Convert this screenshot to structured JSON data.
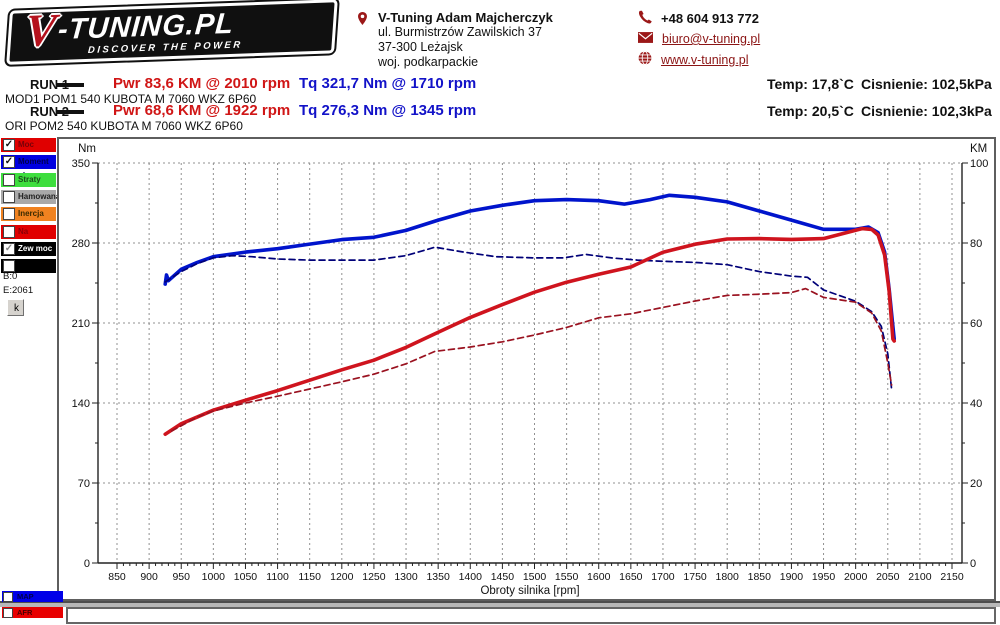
{
  "logo": {
    "v": "V",
    "rest": "-TUNING.PL",
    "tagline": "DISCOVER THE POWER"
  },
  "contact": {
    "name": "V-Tuning Adam Majcherczyk",
    "address_line1": "ul. Burmistrzów Zawilskich 37",
    "address_line2": "37-300 Leżajsk",
    "address_line3": "woj. podkarpackie",
    "phone": "+48 604 913 772",
    "email": "biuro@v-tuning.pl",
    "website": "www.v-tuning.pl"
  },
  "runs": [
    {
      "label": "RUN 1",
      "power": "Pwr  83,6 KM @ 2010 rpm",
      "torque": "Tq 321,7 Nm @ 1710 rpm",
      "temp": "Temp: 17,8`C",
      "pressure": "Cisnienie: 102,5kPa",
      "description": "MOD1 POM1 540 KUBOTA M 7060 WKZ 6P60"
    },
    {
      "label": "RUN 2",
      "power": "Pwr  68,6 KM @ 1922 rpm",
      "torque": "Tq 276,3 Nm @ 1345 rpm",
      "temp": "Temp: 20,5`C",
      "pressure": "Cisnienie: 102,3kPa",
      "description": "ORI POM2 540 KUBOTA M 7060 WKZ 6P60"
    }
  ],
  "sidebar": {
    "channels": [
      {
        "label": "Moc",
        "color": "#e00000",
        "text_color": "#7a0008",
        "checked": true,
        "check_color": "#111111"
      },
      {
        "label": "Moment obr",
        "color": "#0000e0",
        "text_color": "#00004a",
        "checked": true,
        "check_color": "#111111"
      },
      {
        "label": "Straty",
        "color": "#3ede3e",
        "text_color": "#1c4a1c",
        "checked": false
      },
      {
        "label": "Hamowana",
        "color": "#a9a9a9",
        "text_color": "#222222",
        "checked": false
      },
      {
        "label": "Inercja",
        "color": "#f08220",
        "text_color": "#3a2a00",
        "checked": false
      },
      {
        "label": "Na Kołach",
        "color": "#e00000",
        "text_color": "#8a0008",
        "checked": false
      },
      {
        "label": "Zew moc str",
        "color": "#000000",
        "text_color": "#ffffff",
        "checked": true,
        "check_color": "#888888"
      },
      {
        "label": "",
        "color": "#000000",
        "text_color": "#ffffff",
        "checked": false
      }
    ],
    "b_counter": "B:0",
    "e_counter": "E:2061",
    "k_button": "k"
  },
  "bottom_channels": [
    {
      "label": "MAP",
      "color": "#0000e8",
      "text_color": "#00004a"
    },
    {
      "label": "AFR",
      "color": "#e80000",
      "text_color": "#4a0000"
    }
  ],
  "colors": {
    "brand_red": "#b5121d",
    "run_power_text": "#d01616",
    "run_torque_text": "#1212c8",
    "link": "#8b1414",
    "contact_icon": "#9b1818",
    "grid": "#909090",
    "axis": "#222222"
  },
  "chart_data": {
    "type": "line",
    "x_axis": {
      "label": "Obroty silnika [rpm]",
      "min": 850,
      "max": 2150,
      "tick_step": 50,
      "minor_step": 10
    },
    "y_left": {
      "label": "Nm",
      "min": 0,
      "max": 350,
      "tick_step": 70,
      "minor_step": 35
    },
    "y_right": {
      "label": "KM",
      "min": 0,
      "max": 100,
      "tick_step": 20,
      "minor_step": 10
    },
    "grid": true,
    "series": [
      {
        "id": "run1-torque",
        "name": "RUN 1 Moment obr (Nm)",
        "axis": "left",
        "style": "solid",
        "color": "#0014cc",
        "points": [
          [
            925,
            244
          ],
          [
            927,
            252
          ],
          [
            930,
            247
          ],
          [
            950,
            257
          ],
          [
            975,
            263
          ],
          [
            1000,
            268
          ],
          [
            1050,
            272
          ],
          [
            1100,
            275
          ],
          [
            1150,
            279
          ],
          [
            1200,
            283
          ],
          [
            1250,
            285
          ],
          [
            1300,
            291
          ],
          [
            1350,
            300
          ],
          [
            1400,
            308
          ],
          [
            1450,
            313
          ],
          [
            1500,
            317
          ],
          [
            1550,
            318
          ],
          [
            1600,
            317
          ],
          [
            1640,
            314
          ],
          [
            1680,
            318
          ],
          [
            1710,
            321.7
          ],
          [
            1750,
            320
          ],
          [
            1800,
            316
          ],
          [
            1850,
            308
          ],
          [
            1900,
            300
          ],
          [
            1950,
            292
          ],
          [
            2000,
            292
          ],
          [
            2020,
            294
          ],
          [
            2035,
            289
          ],
          [
            2045,
            272
          ],
          [
            2052,
            240
          ],
          [
            2057,
            212
          ],
          [
            2060,
            196
          ]
        ]
      },
      {
        "id": "run2-torque",
        "name": "RUN 2 Moment obr (Nm)",
        "axis": "left",
        "style": "dashed",
        "color": "#000078",
        "points": [
          [
            925,
            246
          ],
          [
            950,
            255
          ],
          [
            975,
            262
          ],
          [
            1000,
            267
          ],
          [
            1030,
            269
          ],
          [
            1060,
            268
          ],
          [
            1100,
            266
          ],
          [
            1150,
            265
          ],
          [
            1200,
            265
          ],
          [
            1250,
            265
          ],
          [
            1300,
            269
          ],
          [
            1345,
            276.3
          ],
          [
            1390,
            272
          ],
          [
            1440,
            268
          ],
          [
            1500,
            267
          ],
          [
            1545,
            267
          ],
          [
            1580,
            270
          ],
          [
            1620,
            267
          ],
          [
            1660,
            265
          ],
          [
            1700,
            264
          ],
          [
            1750,
            263
          ],
          [
            1800,
            261
          ],
          [
            1850,
            255
          ],
          [
            1900,
            251
          ],
          [
            1925,
            250
          ],
          [
            1950,
            239
          ],
          [
            2000,
            229
          ],
          [
            2025,
            220
          ],
          [
            2040,
            207
          ],
          [
            2050,
            183
          ],
          [
            2056,
            152
          ]
        ]
      },
      {
        "id": "run1-power",
        "name": "RUN 1 Moc (KM)",
        "axis": "right",
        "style": "solid",
        "color": "#cf141e",
        "points": [
          [
            925,
            32.2
          ],
          [
            950,
            34.8
          ],
          [
            1000,
            38.2
          ],
          [
            1050,
            40.7
          ],
          [
            1100,
            43.1
          ],
          [
            1150,
            45.7
          ],
          [
            1200,
            48.3
          ],
          [
            1250,
            50.7
          ],
          [
            1300,
            53.9
          ],
          [
            1350,
            57.7
          ],
          [
            1400,
            61.4
          ],
          [
            1450,
            64.6
          ],
          [
            1500,
            67.7
          ],
          [
            1550,
            70.2
          ],
          [
            1600,
            72.2
          ],
          [
            1650,
            74
          ],
          [
            1700,
            77.7
          ],
          [
            1750,
            79.7
          ],
          [
            1800,
            81
          ],
          [
            1850,
            81.1
          ],
          [
            1900,
            80.9
          ],
          [
            1950,
            81.1
          ],
          [
            2000,
            83.2
          ],
          [
            2010,
            83.6
          ],
          [
            2025,
            83.4
          ],
          [
            2035,
            82
          ],
          [
            2045,
            77
          ],
          [
            2052,
            68
          ],
          [
            2058,
            56
          ],
          [
            2060,
            55.5
          ]
        ]
      },
      {
        "id": "run2-power",
        "name": "RUN 2 Moc (KM)",
        "axis": "right",
        "style": "dashed",
        "color": "#9a1220",
        "points": [
          [
            935,
            33
          ],
          [
            975,
            36.5
          ],
          [
            1000,
            38
          ],
          [
            1050,
            40
          ],
          [
            1100,
            41.7
          ],
          [
            1150,
            43.5
          ],
          [
            1200,
            45.3
          ],
          [
            1250,
            47.2
          ],
          [
            1300,
            49.8
          ],
          [
            1345,
            52.9
          ],
          [
            1400,
            54
          ],
          [
            1450,
            55.3
          ],
          [
            1500,
            57
          ],
          [
            1550,
            58.9
          ],
          [
            1600,
            61.3
          ],
          [
            1650,
            62.3
          ],
          [
            1700,
            63.9
          ],
          [
            1750,
            65.5
          ],
          [
            1800,
            66.9
          ],
          [
            1850,
            67.2
          ],
          [
            1900,
            67.6
          ],
          [
            1922,
            68.6
          ],
          [
            1950,
            66.4
          ],
          [
            2000,
            65.2
          ],
          [
            2025,
            62.5
          ],
          [
            2040,
            58
          ],
          [
            2050,
            50
          ],
          [
            2056,
            44.5
          ]
        ]
      }
    ]
  }
}
